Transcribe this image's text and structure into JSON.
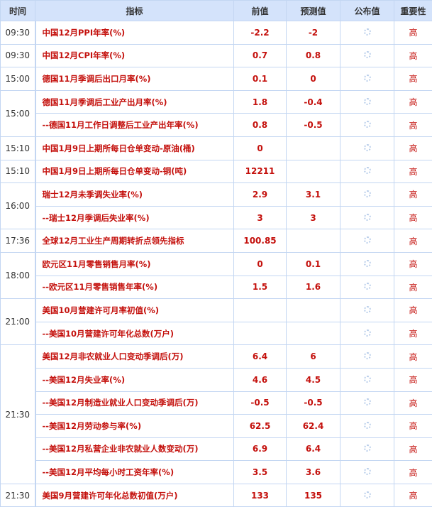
{
  "headers": [
    "时间",
    "指标",
    "前值",
    "预测值",
    "公布值",
    "重要性"
  ],
  "colors": {
    "header_bg": "#d4e3fb",
    "value_red": "#c4100c",
    "border": "#c3d6f2"
  },
  "publish_icon": "loading-spinner-icon",
  "groups": [
    {
      "time": "09:30",
      "rows": [
        {
          "name": "中国12月PPI年率(%)",
          "prev": "-2.2",
          "fcst": "-2",
          "imp": "高"
        }
      ]
    },
    {
      "time": "09:30",
      "rows": [
        {
          "name": "中国12月CPI年率(%)",
          "prev": "0.7",
          "fcst": "0.8",
          "imp": "高"
        }
      ]
    },
    {
      "time": "15:00",
      "rows": [
        {
          "name": "德国11月季调后出口月率(%)",
          "prev": "0.1",
          "fcst": "0",
          "imp": "高"
        }
      ]
    },
    {
      "time": "15:00",
      "rows": [
        {
          "name": "德国11月季调后工业产出月率(%)",
          "prev": "1.8",
          "fcst": "-0.4",
          "imp": "高"
        },
        {
          "name": "--德国11月工作日调整后工业产出年率(%)",
          "prev": "0.8",
          "fcst": "-0.5",
          "imp": "高"
        }
      ]
    },
    {
      "time": "15:10",
      "rows": [
        {
          "name": "中国1月9日上期所每日仓单变动-原油(桶)",
          "prev": "0",
          "fcst": "",
          "imp": "高"
        }
      ]
    },
    {
      "time": "15:10",
      "rows": [
        {
          "name": "中国1月9日上期所每日仓单变动-铜(吨)",
          "prev": "12211",
          "fcst": "",
          "imp": "高"
        }
      ]
    },
    {
      "time": "16:00",
      "rows": [
        {
          "name": "瑞士12月未季调失业率(%)",
          "prev": "2.9",
          "fcst": "3.1",
          "imp": "高"
        },
        {
          "name": "--瑞士12月季调后失业率(%)",
          "prev": "3",
          "fcst": "3",
          "imp": "高"
        }
      ]
    },
    {
      "time": "17:36",
      "rows": [
        {
          "name": "全球12月工业生产周期转折点领先指标",
          "prev": "100.85",
          "fcst": "",
          "imp": "高"
        }
      ]
    },
    {
      "time": "18:00",
      "rows": [
        {
          "name": "欧元区11月零售销售月率(%)",
          "prev": "0",
          "fcst": "0.1",
          "imp": "高"
        },
        {
          "name": "--欧元区11月零售销售年率(%)",
          "prev": "1.5",
          "fcst": "1.6",
          "imp": "高"
        }
      ]
    },
    {
      "time": "21:00",
      "rows": [
        {
          "name": "美国10月营建许可月率初值(%)",
          "prev": "",
          "fcst": "",
          "imp": "高"
        },
        {
          "name": "--美国10月营建许可年化总数(万户)",
          "prev": "",
          "fcst": "",
          "imp": "高"
        }
      ]
    },
    {
      "time": "21:30",
      "rows": [
        {
          "name": "美国12月非农就业人口变动季调后(万)",
          "prev": "6.4",
          "fcst": "6",
          "imp": "高"
        },
        {
          "name": "--美国12月失业率(%)",
          "prev": "4.6",
          "fcst": "4.5",
          "imp": "高"
        },
        {
          "name": "--美国12月制造业就业人口变动季调后(万)",
          "prev": "-0.5",
          "fcst": "-0.5",
          "imp": "高"
        },
        {
          "name": "--美国12月劳动参与率(%)",
          "prev": "62.5",
          "fcst": "62.4",
          "imp": "高"
        },
        {
          "name": "--美国12月私营企业非农就业人数变动(万)",
          "prev": "6.9",
          "fcst": "6.4",
          "imp": "高"
        },
        {
          "name": "--美国12月平均每小时工资年率(%)",
          "prev": "3.5",
          "fcst": "3.6",
          "imp": "高"
        }
      ]
    },
    {
      "time": "21:30",
      "rows": [
        {
          "name": "美国9月营建许可年化总数初值(万户)",
          "prev": "133",
          "fcst": "135",
          "imp": "高"
        }
      ]
    }
  ]
}
